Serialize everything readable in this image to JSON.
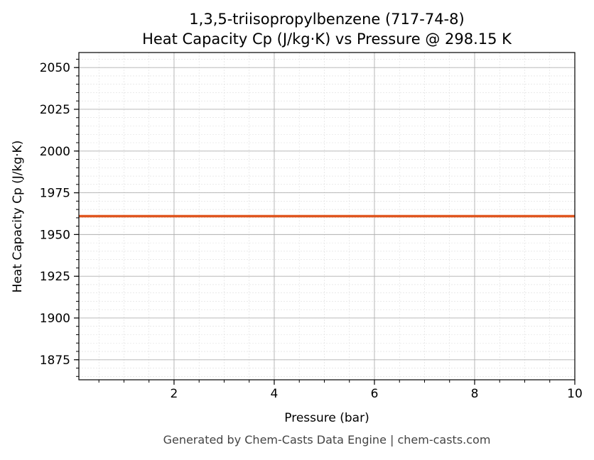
{
  "chart_data": {
    "type": "line",
    "title_line1": "1,3,5-triisopropylbenzene (717-74-8)",
    "title_line2": "Heat Capacity Cp (J/kg·K) vs Pressure @ 298.15 K",
    "xlabel": "Pressure (bar)",
    "ylabel": "Heat Capacity Cp (J/kg·K)",
    "xlim": [
      0.1,
      10
    ],
    "ylim": [
      1863,
      2059
    ],
    "xticks": [
      2,
      4,
      6,
      8,
      10
    ],
    "yticks": [
      1875,
      1900,
      1925,
      1950,
      1975,
      2000,
      2025,
      2050
    ],
    "grid": true,
    "minor_grid": true,
    "series": [
      {
        "x": [
          0.1,
          10
        ],
        "y": [
          1961,
          1961
        ],
        "color": "#e0561f"
      }
    ]
  },
  "footer": "Generated by Chem-Casts Data Engine | chem-casts.com"
}
